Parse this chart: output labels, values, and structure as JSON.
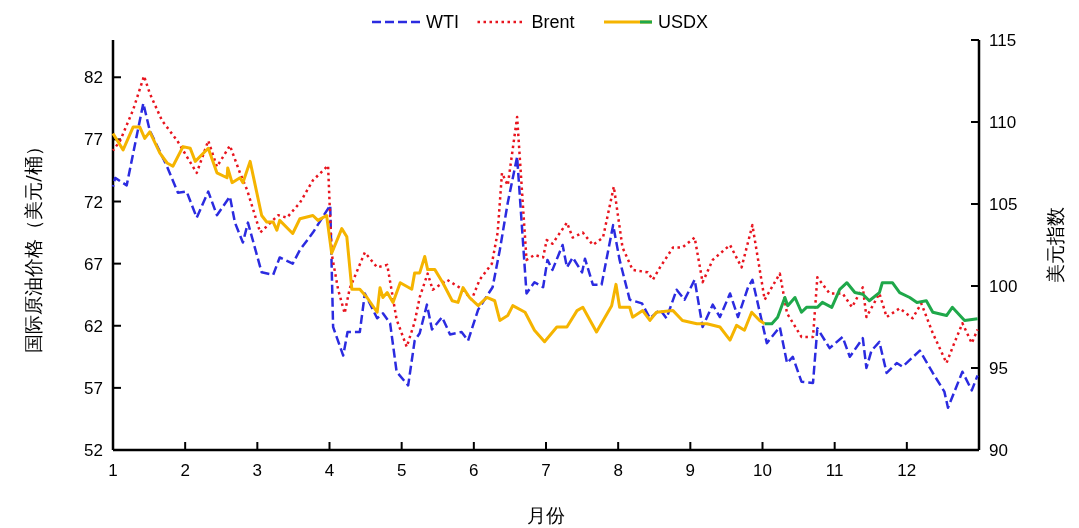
{
  "chart_data": {
    "type": "line",
    "xlabel": "月份",
    "ylabel": "国际原油价格（美元/桶）",
    "y2label": "美元指数",
    "xlim": [
      1,
      13
    ],
    "xticks": [
      1,
      2,
      3,
      4,
      5,
      6,
      7,
      8,
      9,
      10,
      11,
      12
    ],
    "ylim": [
      52,
      85
    ],
    "yticks": [
      52,
      57,
      62,
      67,
      72,
      77,
      82
    ],
    "y2lim": [
      90,
      115
    ],
    "y2ticks": [
      90,
      95,
      100,
      105,
      110,
      115
    ],
    "legend": "top",
    "series": [
      {
        "name": "WTI",
        "color": "#2b2be0",
        "line_style": "dashed",
        "x": [
          1.0,
          1.03,
          1.19,
          1.42,
          1.51,
          1.75,
          1.9,
          2.02,
          2.16,
          2.32,
          2.44,
          2.62,
          2.69,
          2.8,
          2.87,
          3.06,
          3.22,
          3.31,
          3.49,
          3.59,
          3.77,
          4.01,
          4.05,
          4.19,
          4.25,
          4.42,
          4.49,
          4.66,
          4.74,
          4.84,
          4.93,
          5.09,
          5.18,
          5.25,
          5.35,
          5.42,
          5.56,
          5.67,
          5.83,
          5.92,
          6.06,
          6.26,
          6.36,
          6.47,
          6.6,
          6.73,
          6.84,
          6.96,
          7.02,
          7.09,
          7.23,
          7.29,
          7.37,
          7.5,
          7.54,
          7.65,
          7.77,
          7.93,
          8.02,
          8.16,
          8.33,
          8.44,
          8.58,
          8.67,
          8.81,
          8.92,
          9.06,
          9.17,
          9.31,
          9.41,
          9.55,
          9.66,
          9.8,
          9.86,
          10.06,
          10.24,
          10.34,
          10.42,
          10.54,
          10.7,
          10.76,
          10.93,
          11.11,
          11.21,
          11.39,
          11.44,
          11.51,
          11.62,
          11.72,
          11.86,
          11.94,
          12.18,
          12.36,
          12.52,
          12.57,
          12.77,
          12.9,
          12.98
        ],
        "values": [
          73.2,
          73.9,
          73.3,
          79.9,
          77.7,
          74.8,
          72.7,
          72.8,
          70.7,
          72.8,
          70.9,
          72.4,
          70.3,
          68.7,
          70.3,
          66.3,
          66.1,
          67.5,
          67.0,
          68.1,
          69.5,
          71.7,
          61.9,
          59.6,
          61.5,
          61.5,
          64.6,
          62.6,
          63.0,
          62.2,
          58.3,
          57.2,
          60.8,
          61.4,
          63.7,
          61.7,
          62.7,
          61.3,
          61.5,
          60.8,
          63.3,
          65.1,
          68.1,
          71.9,
          75.6,
          64.6,
          65.5,
          65.1,
          67.3,
          66.5,
          68.5,
          66.7,
          67.5,
          66.3,
          67.4,
          65.3,
          65.3,
          70.1,
          67.3,
          64.1,
          63.8,
          62.6,
          63.3,
          62.6,
          64.9,
          64.1,
          65.7,
          61.9,
          63.7,
          62.7,
          64.6,
          62.7,
          65.1,
          65.7,
          60.6,
          61.9,
          59.0,
          59.5,
          57.5,
          57.4,
          61.8,
          60.2,
          61.1,
          59.5,
          61.0,
          58.6,
          60.0,
          60.7,
          58.2,
          59.0,
          58.7,
          60.0,
          58.2,
          56.7,
          55.4,
          58.3,
          56.8,
          58.0
        ]
      },
      {
        "name": "Brent",
        "color": "#e8141e",
        "line_style": "dotted",
        "x": [
          1.0,
          1.1,
          1.28,
          1.43,
          1.51,
          1.68,
          1.89,
          2.16,
          2.32,
          2.44,
          2.62,
          2.76,
          2.86,
          3.04,
          3.29,
          3.41,
          3.59,
          3.77,
          3.98,
          4.03,
          4.12,
          4.21,
          4.28,
          4.49,
          4.66,
          4.8,
          4.93,
          5.07,
          5.18,
          5.25,
          5.36,
          5.43,
          5.63,
          5.85,
          5.97,
          6.08,
          6.25,
          6.33,
          6.39,
          6.47,
          6.6,
          6.73,
          6.84,
          6.96,
          7.01,
          7.09,
          7.29,
          7.37,
          7.51,
          7.65,
          7.79,
          7.94,
          8.06,
          8.2,
          8.41,
          8.48,
          8.58,
          8.76,
          8.89,
          9.06,
          9.17,
          9.31,
          9.55,
          9.71,
          9.86,
          10.03,
          10.24,
          10.34,
          10.54,
          10.7,
          10.76,
          10.93,
          11.11,
          11.24,
          11.39,
          11.44,
          11.62,
          11.72,
          11.9,
          12.08,
          12.2,
          12.36,
          12.55,
          12.63,
          12.77,
          12.9,
          12.98
        ],
        "values": [
          76.1,
          76.9,
          79.4,
          82.1,
          80.7,
          78.5,
          76.9,
          74.3,
          76.9,
          74.8,
          76.5,
          74.3,
          72.9,
          69.5,
          70.9,
          70.7,
          71.9,
          73.7,
          74.9,
          67.8,
          64.9,
          63.0,
          65.0,
          67.9,
          66.7,
          66.9,
          62.5,
          60.3,
          62.3,
          64.3,
          66.2,
          64.9,
          65.7,
          64.9,
          64.1,
          65.7,
          67.0,
          69.5,
          74.3,
          73.3,
          78.8,
          67.3,
          67.7,
          67.5,
          68.9,
          68.6,
          70.3,
          69.1,
          69.5,
          68.5,
          69.1,
          73.2,
          68.3,
          66.5,
          66.3,
          65.7,
          66.7,
          68.3,
          68.3,
          69.1,
          65.5,
          67.3,
          68.5,
          66.7,
          70.1,
          64.1,
          66.2,
          63.0,
          61.1,
          61.1,
          65.9,
          64.6,
          64.6,
          63.5,
          65.1,
          62.7,
          64.6,
          62.7,
          63.4,
          62.6,
          63.8,
          61.4,
          59.0,
          60.2,
          62.2,
          60.6,
          61.7
        ]
      },
      {
        "name": "USDX",
        "color": "#f5b400",
        "line_style": "solid",
        "axis": "y2",
        "x": [
          1.0,
          1.14,
          1.28,
          1.37,
          1.44,
          1.51,
          1.65,
          1.75,
          1.83,
          1.97,
          2.07,
          2.14,
          2.32,
          2.44,
          2.58,
          2.59,
          2.65,
          2.76,
          2.8,
          2.9,
          3.06,
          3.13,
          3.22,
          3.27,
          3.31,
          3.49,
          3.59,
          3.77,
          3.84,
          3.96,
          4.03,
          4.17,
          4.24,
          4.31,
          4.42,
          4.52,
          4.66,
          4.7,
          4.74,
          4.8,
          4.88,
          4.98,
          5.14,
          5.18,
          5.25,
          5.32,
          5.36,
          5.46,
          5.57,
          5.7,
          5.78,
          5.85,
          5.94,
          6.06,
          6.18,
          6.29,
          6.36,
          6.47,
          6.54,
          6.71,
          6.84,
          6.98,
          7.15,
          7.29,
          7.43,
          7.51,
          7.7,
          7.91,
          7.97,
          8.02,
          8.16,
          8.2,
          8.34,
          8.44,
          8.53,
          8.76,
          8.89,
          9.09,
          9.23,
          9.41,
          9.55,
          9.64,
          9.75,
          9.85,
          9.96,
          10.03
        ],
        "values": [
          109.3,
          108.3,
          109.7,
          109.7,
          109.0,
          109.4,
          108.1,
          107.5,
          107.3,
          108.5,
          108.4,
          107.6,
          108.4,
          106.9,
          106.6,
          107.2,
          106.3,
          106.6,
          106.3,
          107.6,
          104.3,
          103.9,
          103.9,
          103.4,
          104.0,
          103.2,
          104.1,
          104.3,
          104.0,
          104.3,
          102.0,
          103.5,
          103.0,
          99.8,
          99.8,
          99.3,
          98.4,
          99.9,
          99.3,
          99.6,
          99.0,
          100.2,
          99.8,
          100.8,
          100.8,
          101.8,
          101.0,
          101.0,
          100.2,
          99.1,
          99.0,
          99.9,
          99.3,
          98.8,
          99.3,
          99.1,
          97.9,
          98.2,
          98.8,
          98.4,
          97.3,
          96.6,
          97.5,
          97.5,
          98.5,
          98.7,
          97.2,
          98.8,
          100.1,
          98.7,
          98.7,
          98.1,
          98.5,
          97.9,
          98.4,
          98.5,
          97.9,
          97.7,
          97.7,
          97.5,
          96.7,
          97.6,
          97.3,
          98.4,
          97.9,
          97.7
        ]
      },
      {
        "color": "#1fa84a",
        "line_style": "solid",
        "axis": "y2",
        "x": [
          10.03,
          10.13,
          10.21,
          10.31,
          10.35,
          10.45,
          10.54,
          10.61,
          10.76,
          10.83,
          10.96,
          11.07,
          11.17,
          11.28,
          11.39,
          11.48,
          11.62,
          11.66,
          11.8,
          11.9,
          12.04,
          12.14,
          12.27,
          12.36,
          12.55,
          12.63,
          12.8,
          12.98
        ],
        "values": [
          97.7,
          97.7,
          98.1,
          99.3,
          98.8,
          99.3,
          98.4,
          98.7,
          98.7,
          99.0,
          98.7,
          99.8,
          100.2,
          99.6,
          99.5,
          99.1,
          99.6,
          100.2,
          100.2,
          99.6,
          99.3,
          99.0,
          99.1,
          98.4,
          98.2,
          98.7,
          97.9,
          98.0
        ]
      }
    ]
  }
}
